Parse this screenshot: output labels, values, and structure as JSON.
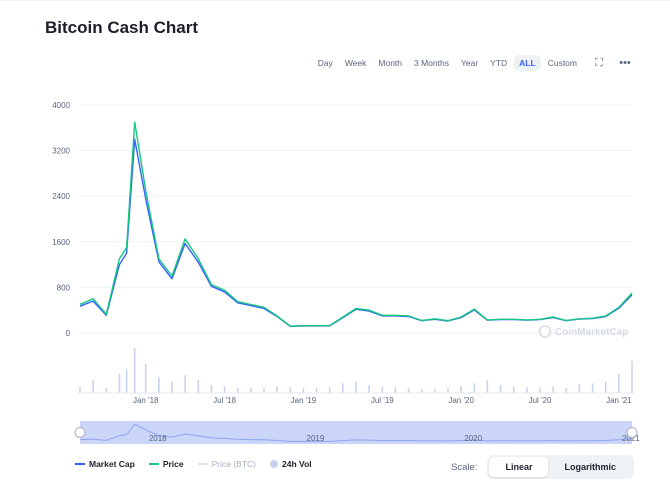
{
  "title": "Bitcoin Cash Chart",
  "toolbar": {
    "ranges": [
      "Day",
      "Week",
      "Month",
      "3 Months",
      "Year",
      "YTD",
      "ALL",
      "Custom"
    ],
    "active_range": "ALL",
    "fullscreen_icon": "fullscreen-icon",
    "more_icon": "more-icon",
    "fullscreen_glyph": "⛶",
    "more_glyph": "•••"
  },
  "watermark": "CoinMarketCap",
  "colors": {
    "price": "#16c784",
    "market_cap": "#3861fb",
    "volume": "#c9d3ec",
    "grid": "#eff2f5",
    "navigator": "#cad5f8"
  },
  "legend": {
    "market_cap": "Market Cap",
    "price": "Price",
    "price_btc": "Price (BTC)",
    "volume": "24h Vol"
  },
  "scale": {
    "label": "Scale:",
    "linear": "Linear",
    "log": "Logarithmic",
    "active": "Linear"
  },
  "chart_data": {
    "type": "line",
    "y_ticks": [
      "4000",
      "3200",
      "2400",
      "1600",
      "800",
      "0"
    ],
    "ylim": [
      0,
      4000
    ],
    "x_ticks": [
      "Jan '18",
      "Jul '18",
      "Jan '19",
      "Jul '19",
      "Jan '20",
      "Jul '20",
      "Jan '21"
    ],
    "navigator_ticks": [
      "2018",
      "2019",
      "2020",
      "2021"
    ],
    "grid": true,
    "legend_position": "bottom-left",
    "x": [
      "2017-08",
      "2017-09",
      "2017-10",
      "2017-11",
      "2017-12-01",
      "2017-12-20",
      "2018-01",
      "2018-02",
      "2018-03",
      "2018-04",
      "2018-05",
      "2018-06",
      "2018-07",
      "2018-08",
      "2018-09",
      "2018-10",
      "2018-11",
      "2018-12",
      "2019-01",
      "2019-02",
      "2019-03",
      "2019-04",
      "2019-05",
      "2019-06",
      "2019-07",
      "2019-08",
      "2019-09",
      "2019-10",
      "2019-11",
      "2019-12",
      "2020-01",
      "2020-02",
      "2020-03",
      "2020-04",
      "2020-05",
      "2020-06",
      "2020-07",
      "2020-08",
      "2020-09",
      "2020-10",
      "2020-11",
      "2020-12",
      "2021-01",
      "2021-02"
    ],
    "series": [
      {
        "name": "Price",
        "values": [
          500,
          600,
          330,
          1300,
          1500,
          3700,
          2500,
          1300,
          1000,
          1650,
          1300,
          850,
          750,
          550,
          500,
          450,
          300,
          120,
          130,
          130,
          130,
          280,
          430,
          400,
          310,
          310,
          300,
          220,
          250,
          215,
          280,
          420,
          230,
          240,
          240,
          230,
          240,
          280,
          220,
          250,
          260,
          300,
          450,
          700
        ]
      },
      {
        "name": "Market Cap",
        "values": [
          470,
          560,
          310,
          1200,
          1400,
          3400,
          2350,
          1250,
          950,
          1570,
          1240,
          820,
          720,
          530,
          480,
          430,
          290,
          115,
          125,
          125,
          125,
          270,
          415,
          385,
          300,
          300,
          290,
          215,
          240,
          210,
          270,
          405,
          225,
          235,
          235,
          225,
          235,
          270,
          215,
          245,
          255,
          290,
          435,
          670
        ]
      }
    ],
    "volume": [
      40,
      80,
      30,
      120,
      150,
      280,
      180,
      100,
      70,
      110,
      80,
      50,
      40,
      30,
      30,
      28,
      40,
      35,
      30,
      30,
      35,
      60,
      70,
      50,
      40,
      35,
      30,
      25,
      25,
      28,
      45,
      60,
      80,
      50,
      40,
      35,
      35,
      40,
      30,
      55,
      60,
      70,
      120,
      200
    ]
  }
}
